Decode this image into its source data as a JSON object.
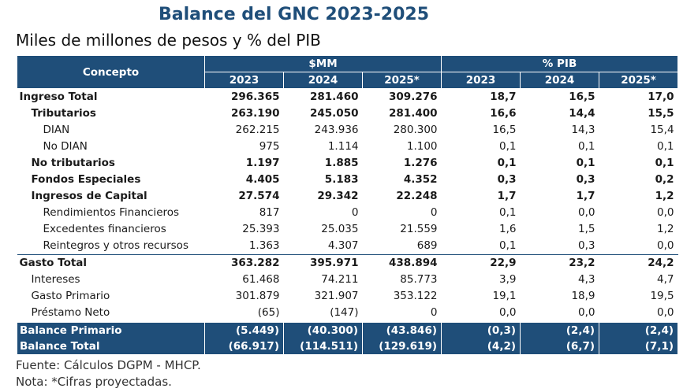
{
  "title": "Balance del GNC 2023-2025",
  "subtitle": "Miles de millones de pesos y % del PIB",
  "header": {
    "concepto": "Concepto",
    "group_mm": "$MM",
    "group_pib": "% PIB",
    "years": [
      "2023",
      "2024",
      "2025*",
      "2023",
      "2024",
      "2025*"
    ]
  },
  "rows": [
    {
      "label": "Ingreso Total",
      "level": 0,
      "bold": true,
      "values": [
        "296.365",
        "281.460",
        "309.276",
        "18,7",
        "16,5",
        "17,0"
      ]
    },
    {
      "label": "Tributarios",
      "level": 1,
      "bold": true,
      "values": [
        "263.190",
        "245.050",
        "281.400",
        "16,6",
        "14,4",
        "15,5"
      ]
    },
    {
      "label": "DIAN",
      "level": 2,
      "bold": false,
      "values": [
        "262.215",
        "243.936",
        "280.300",
        "16,5",
        "14,3",
        "15,4"
      ]
    },
    {
      "label": "No DIAN",
      "level": 2,
      "bold": false,
      "values": [
        "975",
        "1.114",
        "1.100",
        "0,1",
        "0,1",
        "0,1"
      ]
    },
    {
      "label": "No tributarios",
      "level": 1,
      "bold": true,
      "values": [
        "1.197",
        "1.885",
        "1.276",
        "0,1",
        "0,1",
        "0,1"
      ]
    },
    {
      "label": "Fondos Especiales",
      "level": 1,
      "bold": true,
      "values": [
        "4.405",
        "5.183",
        "4.352",
        "0,3",
        "0,3",
        "0,2"
      ]
    },
    {
      "label": "Ingresos de Capital",
      "level": 1,
      "bold": true,
      "values": [
        "27.574",
        "29.342",
        "22.248",
        "1,7",
        "1,7",
        "1,2"
      ]
    },
    {
      "label": "Rendimientos Financieros",
      "level": 3,
      "bold": false,
      "values": [
        "817",
        "0",
        "0",
        "0,1",
        "0,0",
        "0,0"
      ]
    },
    {
      "label": "Excedentes financieros",
      "level": 3,
      "bold": false,
      "values": [
        "25.393",
        "25.035",
        "21.559",
        "1,6",
        "1,5",
        "1,2"
      ]
    },
    {
      "label": "Reintegros y otros recursos",
      "level": 3,
      "bold": false,
      "values": [
        "1.363",
        "4.307",
        "689",
        "0,1",
        "0,3",
        "0,0"
      ]
    },
    {
      "label": "Gasto Total",
      "level": 0,
      "bold": true,
      "values": [
        "363.282",
        "395.971",
        "438.894",
        "22,9",
        "23,2",
        "24,2"
      ]
    },
    {
      "label": "Intereses",
      "level": 1,
      "bold": false,
      "values": [
        "61.468",
        "74.211",
        "85.773",
        "3,9",
        "4,3",
        "4,7"
      ]
    },
    {
      "label": "Gasto Primario",
      "level": 1,
      "bold": false,
      "values": [
        "301.879",
        "321.907",
        "353.122",
        "19,1",
        "18,9",
        "19,5"
      ]
    },
    {
      "label": "Préstamo Neto",
      "level": 1,
      "bold": false,
      "values": [
        "(65)",
        "(147)",
        "0",
        "0,0",
        "0,0",
        "0,0"
      ]
    },
    {
      "label": "Balance Primario",
      "level": 0,
      "bold": true,
      "dark": true,
      "values": [
        "(5.449)",
        "(40.300)",
        "(43.846)",
        "(0,3)",
        "(2,4)",
        "(2,4)"
      ]
    },
    {
      "label": "Balance Total",
      "level": 0,
      "bold": true,
      "dark": true,
      "values": [
        "(66.917)",
        "(114.511)",
        "(129.619)",
        "(4,2)",
        "(6,7)",
        "(7,1)"
      ]
    }
  ],
  "footer": {
    "source": "Fuente: Cálculos DGPM - MHCP.",
    "note": "Nota: *Cifras proyectadas."
  },
  "colors": {
    "header_bg": "#1f4e79",
    "title": "#1f4e79"
  }
}
